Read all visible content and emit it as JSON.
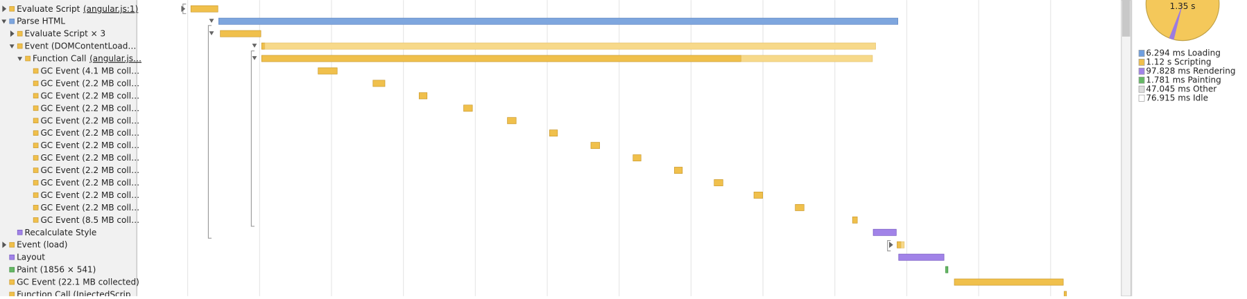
{
  "rows": [
    {
      "label": "Evaluate Script",
      "link": "(angular.js:1)"
    },
    {
      "label": "Parse HTML"
    },
    {
      "label": "Evaluate Script × 3"
    },
    {
      "label": "Event (DOMContentLoad…"
    },
    {
      "label": "Function Call",
      "link": "(angular.js…"
    },
    {
      "label": "GC Event (4.1 MB coll…"
    },
    {
      "label": "GC Event (2.2 MB coll…"
    },
    {
      "label": "GC Event (2.2 MB coll…"
    },
    {
      "label": "GC Event (2.2 MB coll…"
    },
    {
      "label": "GC Event (2.2 MB coll…"
    },
    {
      "label": "GC Event (2.2 MB coll…"
    },
    {
      "label": "GC Event (2.2 MB coll…"
    },
    {
      "label": "GC Event (2.2 MB coll…"
    },
    {
      "label": "GC Event (2.2 MB coll…"
    },
    {
      "label": "GC Event (2.2 MB coll…"
    },
    {
      "label": "GC Event (2.2 MB coll…"
    },
    {
      "label": "GC Event (2.2 MB coll…"
    },
    {
      "label": "GC Event (8.5 MB coll…"
    },
    {
      "label": "Recalculate Style"
    },
    {
      "label": "Event (load)"
    },
    {
      "label": "Layout"
    },
    {
      "label": "Paint (1856 × 541)"
    },
    {
      "label": "GC Event (22.1 MB collected)"
    },
    {
      "label": "Function Call (InjectedScrip…"
    }
  ],
  "summary": {
    "total": "1.35 s",
    "legend": [
      "6.294 ms Loading",
      "1.12 s Scripting",
      "97.828 ms Rendering",
      "1.781 ms Painting",
      "47.045 ms Other",
      "76.915 ms Idle"
    ]
  }
}
